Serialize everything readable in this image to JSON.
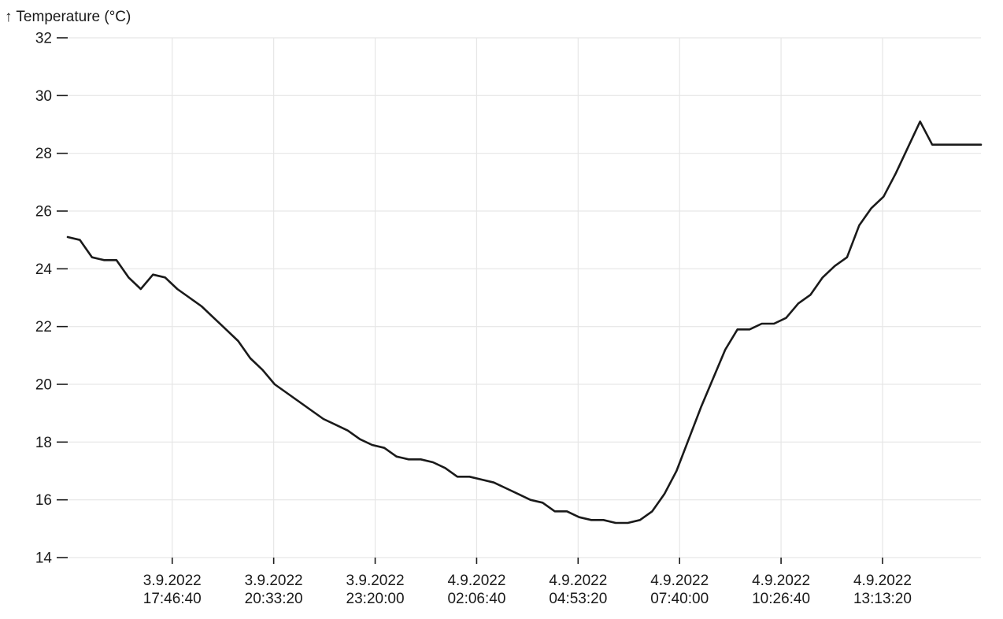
{
  "chart_data": {
    "type": "line",
    "title": "",
    "ylabel": "↑ Temperature  (°C)",
    "xlabel": "",
    "ylim": [
      14,
      32
    ],
    "xlim": [
      "2022-09-03 14:55:00",
      "2022-09-04 15:55:00"
    ],
    "grid": true,
    "y_ticks": [
      "14",
      "16",
      "18",
      "20",
      "22",
      "24",
      "26",
      "28",
      "30",
      "32"
    ],
    "x_ticks": [
      {
        "t": "2022-09-03 17:46:40",
        "date": "3.9.2022",
        "time": "17:46:40"
      },
      {
        "t": "2022-09-03 20:33:20",
        "date": "3.9.2022",
        "time": "20:33:20"
      },
      {
        "t": "2022-09-03 23:20:00",
        "date": "3.9.2022",
        "time": "23:20:00"
      },
      {
        "t": "2022-09-04 02:06:40",
        "date": "4.9.2022",
        "time": "02:06:40"
      },
      {
        "t": "2022-09-04 04:53:20",
        "date": "4.9.2022",
        "time": "04:53:20"
      },
      {
        "t": "2022-09-04 07:40:00",
        "date": "4.9.2022",
        "time": "07:40:00"
      },
      {
        "t": "2022-09-04 10:26:40",
        "date": "4.9.2022",
        "time": "10:26:40"
      },
      {
        "t": "2022-09-04 13:13:20",
        "date": "4.9.2022",
        "time": "13:13:20"
      }
    ],
    "series": [
      {
        "color": "#1a1a1a",
        "x": [
          "2022-09-03 14:55:00",
          "2022-09-03 15:15:00",
          "2022-09-03 15:35:00",
          "2022-09-03 15:55:00",
          "2022-09-03 16:15:00",
          "2022-09-03 16:35:00",
          "2022-09-03 16:55:00",
          "2022-09-03 17:15:00",
          "2022-09-03 17:35:00",
          "2022-09-03 17:55:00",
          "2022-09-03 18:15:00",
          "2022-09-03 18:35:00",
          "2022-09-03 18:55:00",
          "2022-09-03 19:15:00",
          "2022-09-03 19:35:00",
          "2022-09-03 19:55:00",
          "2022-09-03 20:15:00",
          "2022-09-03 20:35:00",
          "2022-09-03 20:55:00",
          "2022-09-03 21:15:00",
          "2022-09-03 21:35:00",
          "2022-09-03 21:55:00",
          "2022-09-03 22:15:00",
          "2022-09-03 22:35:00",
          "2022-09-03 22:55:00",
          "2022-09-03 23:15:00",
          "2022-09-03 23:35:00",
          "2022-09-03 23:55:00",
          "2022-09-04 00:15:00",
          "2022-09-04 00:35:00",
          "2022-09-04 00:55:00",
          "2022-09-04 01:15:00",
          "2022-09-04 01:35:00",
          "2022-09-04 01:55:00",
          "2022-09-04 02:15:00",
          "2022-09-04 02:35:00",
          "2022-09-04 02:55:00",
          "2022-09-04 03:15:00",
          "2022-09-04 03:35:00",
          "2022-09-04 03:55:00",
          "2022-09-04 04:15:00",
          "2022-09-04 04:35:00",
          "2022-09-04 04:55:00",
          "2022-09-04 05:15:00",
          "2022-09-04 05:35:00",
          "2022-09-04 05:55:00",
          "2022-09-04 06:15:00",
          "2022-09-04 06:35:00",
          "2022-09-04 06:55:00",
          "2022-09-04 07:15:00",
          "2022-09-04 07:35:00",
          "2022-09-04 07:55:00",
          "2022-09-04 08:15:00",
          "2022-09-04 08:35:00",
          "2022-09-04 08:55:00",
          "2022-09-04 09:15:00",
          "2022-09-04 09:35:00",
          "2022-09-04 09:55:00",
          "2022-09-04 10:15:00",
          "2022-09-04 10:35:00",
          "2022-09-04 10:55:00",
          "2022-09-04 11:15:00",
          "2022-09-04 11:35:00",
          "2022-09-04 11:55:00",
          "2022-09-04 12:15:00",
          "2022-09-04 12:35:00",
          "2022-09-04 12:55:00",
          "2022-09-04 13:15:00",
          "2022-09-04 13:35:00",
          "2022-09-04 13:55:00",
          "2022-09-04 14:15:00",
          "2022-09-04 14:35:00",
          "2022-09-04 14:55:00",
          "2022-09-04 15:15:00",
          "2022-09-04 15:35:00",
          "2022-09-04 15:55:00"
        ],
        "y": [
          25.1,
          25.0,
          24.4,
          24.3,
          24.3,
          23.7,
          23.3,
          23.8,
          23.7,
          23.3,
          23.0,
          22.7,
          22.3,
          21.9,
          21.5,
          20.9,
          20.5,
          20.0,
          19.7,
          19.4,
          19.1,
          18.8,
          18.6,
          18.4,
          18.1,
          17.9,
          17.8,
          17.5,
          17.4,
          17.4,
          17.3,
          17.1,
          16.8,
          16.8,
          16.7,
          16.6,
          16.4,
          16.2,
          16.0,
          15.9,
          15.6,
          15.6,
          15.4,
          15.3,
          15.3,
          15.2,
          15.2,
          15.3,
          15.6,
          16.2,
          17.0,
          18.1,
          19.2,
          20.2,
          21.2,
          21.9,
          21.9,
          22.1,
          22.1,
          22.3,
          22.8,
          23.1,
          23.7,
          24.1,
          24.4,
          25.5,
          26.1,
          26.5,
          27.3,
          28.2,
          29.1,
          28.3,
          28.3,
          28.3,
          28.3,
          28.3
        ]
      }
    ]
  }
}
